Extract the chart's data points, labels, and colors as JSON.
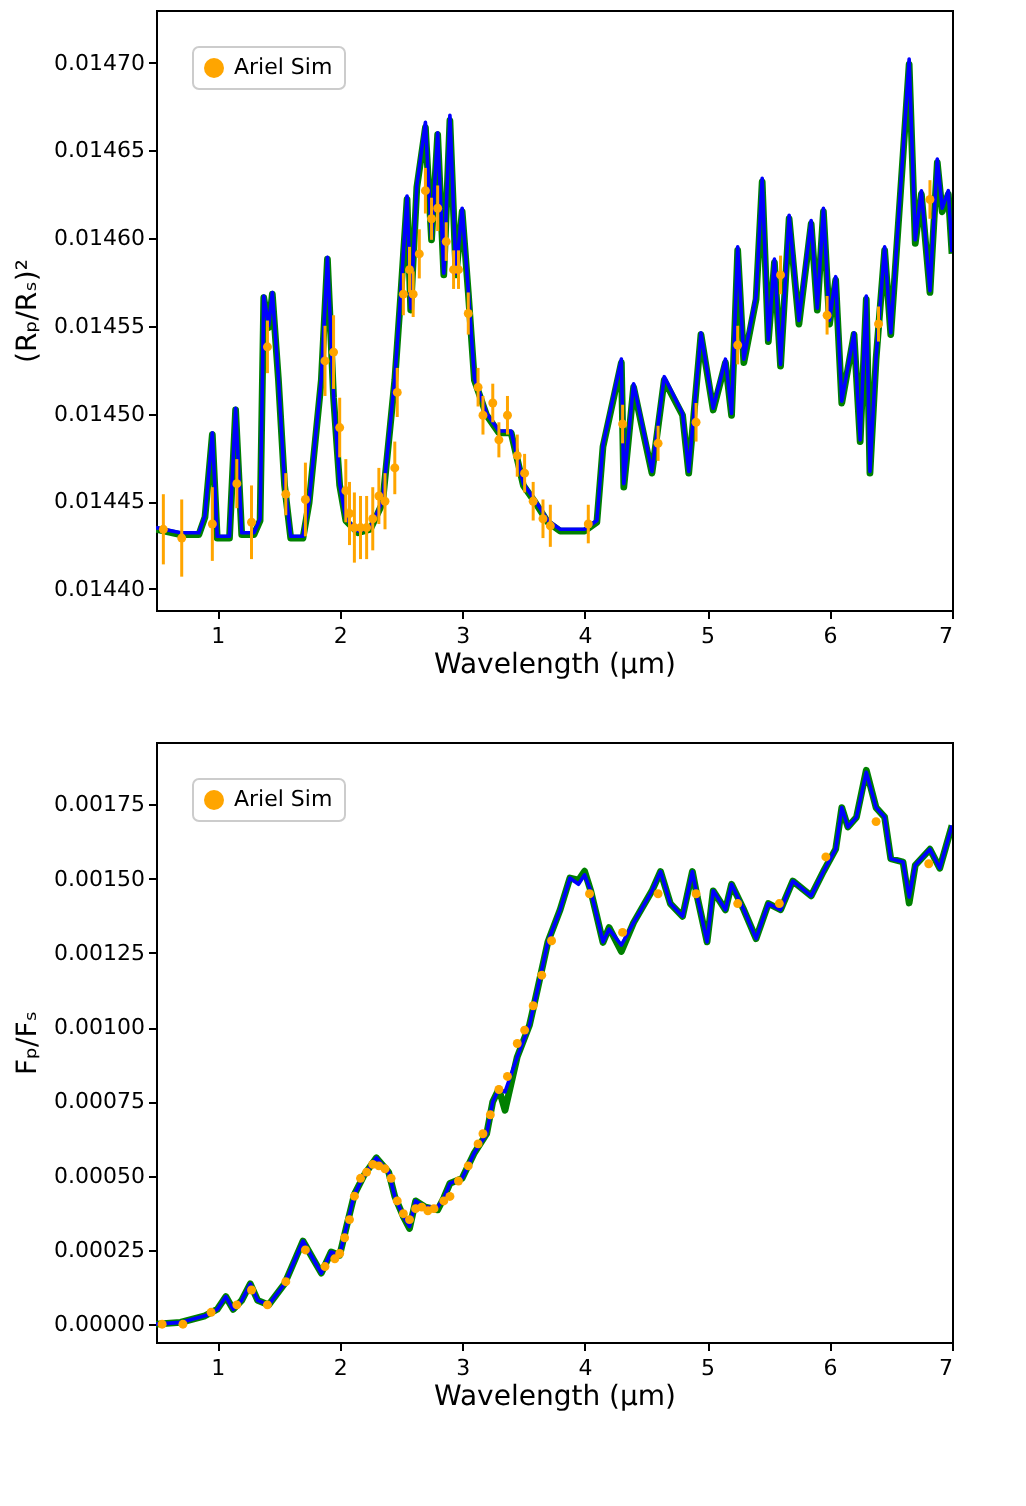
{
  "chart_data": [
    {
      "type": "line",
      "xlabel": "Wavelength (μm)",
      "ylabel": "(Rₚ/Rₛ)²",
      "xlim": [
        0.5,
        7
      ],
      "ylim": [
        0.014388,
        0.01473
      ],
      "xticks": [
        1,
        2,
        3,
        4,
        5,
        6,
        7
      ],
      "yticks": [
        {
          "value": 0.0144,
          "label": "0.01440"
        },
        {
          "value": 0.01445,
          "label": "0.01445"
        },
        {
          "value": 0.0145,
          "label": "0.01450"
        },
        {
          "value": 0.01455,
          "label": "0.01455"
        },
        {
          "value": 0.0146,
          "label": "0.01460"
        },
        {
          "value": 0.01465,
          "label": "0.01465"
        },
        {
          "value": 0.0147,
          "label": "0.01470"
        }
      ],
      "legend": "top left",
      "series": [
        {
          "color": "#008000",
          "x": [
            0.5,
            0.7,
            0.85,
            0.9,
            0.96,
            1.0,
            1.1,
            1.15,
            1.2,
            1.3,
            1.35,
            1.38,
            1.42,
            1.45,
            1.5,
            1.55,
            1.6,
            1.7,
            1.75,
            1.85,
            1.9,
            1.95,
            2.0,
            2.05,
            2.15,
            2.25,
            2.35,
            2.45,
            2.5,
            2.55,
            2.58,
            2.63,
            2.7,
            2.75,
            2.8,
            2.85,
            2.9,
            2.95,
            3.0,
            3.05,
            3.1,
            3.2,
            3.3,
            3.4,
            3.5,
            3.6,
            3.7,
            3.8,
            3.9,
            4.0,
            4.1,
            4.15,
            4.3,
            4.32,
            4.4,
            4.55,
            4.65,
            4.8,
            4.85,
            4.95,
            5.05,
            5.15,
            5.2,
            5.25,
            5.3,
            5.4,
            5.45,
            5.5,
            5.55,
            5.6,
            5.67,
            5.75,
            5.85,
            5.9,
            5.95,
            6.0,
            6.05,
            6.1,
            6.2,
            6.25,
            6.3,
            6.33,
            6.38,
            6.45,
            6.5,
            6.6,
            6.65,
            6.7,
            6.75,
            6.82,
            6.88,
            6.92,
            6.97,
            7.0
          ],
          "values": [
            0.014434,
            0.014431,
            0.014431,
            0.014441,
            0.014488,
            0.014429,
            0.014429,
            0.014502,
            0.014431,
            0.014431,
            0.014439,
            0.014566,
            0.014549,
            0.014568,
            0.014519,
            0.014459,
            0.014429,
            0.014429,
            0.014449,
            0.014519,
            0.014588,
            0.014509,
            0.014459,
            0.014439,
            0.014432,
            0.014434,
            0.014449,
            0.014519,
            0.014569,
            0.014622,
            0.014559,
            0.014629,
            0.014663,
            0.014599,
            0.014659,
            0.014579,
            0.014667,
            0.014579,
            0.014615,
            0.014569,
            0.014519,
            0.014499,
            0.014489,
            0.014489,
            0.014459,
            0.014449,
            0.014438,
            0.014433,
            0.014433,
            0.014433,
            0.014438,
            0.014481,
            0.014529,
            0.014458,
            0.014515,
            0.014466,
            0.014519,
            0.014499,
            0.014466,
            0.014545,
            0.014502,
            0.014529,
            0.014499,
            0.014593,
            0.014529,
            0.014565,
            0.014632,
            0.014541,
            0.014586,
            0.014527,
            0.014611,
            0.014551,
            0.014608,
            0.014559,
            0.014615,
            0.014551,
            0.014576,
            0.014506,
            0.014545,
            0.014484,
            0.014565,
            0.014466,
            0.014531,
            0.014593,
            0.014545,
            0.014647,
            0.014699,
            0.014597,
            0.014625,
            0.014569,
            0.014643,
            0.014615,
            0.014625,
            0.014591
          ]
        },
        {
          "color": "#0000ff",
          "x": [
            0.5,
            0.7,
            0.85,
            0.9,
            0.96,
            1.0,
            1.1,
            1.15,
            1.2,
            1.3,
            1.35,
            1.38,
            1.42,
            1.45,
            1.5,
            1.55,
            1.6,
            1.7,
            1.75,
            1.85,
            1.9,
            1.95,
            2.0,
            2.05,
            2.15,
            2.25,
            2.35,
            2.45,
            2.5,
            2.55,
            2.58,
            2.63,
            2.7,
            2.75,
            2.8,
            2.85,
            2.9,
            2.95,
            3.0,
            3.05,
            3.1,
            3.2,
            3.3,
            3.4,
            3.5,
            3.6,
            3.7,
            3.8,
            3.9,
            4.0,
            4.1,
            4.15,
            4.3,
            4.32,
            4.4,
            4.55,
            4.65,
            4.8,
            4.85,
            4.95,
            5.05,
            5.15,
            5.2,
            5.25,
            5.3,
            5.4,
            5.45,
            5.5,
            5.55,
            5.6,
            5.67,
            5.75,
            5.85,
            5.9,
            5.95,
            6.0,
            6.05,
            6.1,
            6.2,
            6.25,
            6.3,
            6.33,
            6.38,
            6.45,
            6.5,
            6.6,
            6.65,
            6.7,
            6.75,
            6.82,
            6.88,
            6.92,
            6.97,
            7.0
          ],
          "values": [
            0.014435,
            0.014432,
            0.014432,
            0.014442,
            0.014489,
            0.01443,
            0.01443,
            0.014503,
            0.014432,
            0.014432,
            0.01444,
            0.014567,
            0.01455,
            0.014569,
            0.01452,
            0.01446,
            0.01443,
            0.01443,
            0.01445,
            0.01452,
            0.014589,
            0.01451,
            0.01446,
            0.01444,
            0.014433,
            0.014435,
            0.01445,
            0.01452,
            0.01457,
            0.014624,
            0.01456,
            0.01463,
            0.014666,
            0.0146,
            0.01466,
            0.01458,
            0.01467,
            0.01458,
            0.014617,
            0.01457,
            0.01452,
            0.0145,
            0.01449,
            0.01449,
            0.01446,
            0.01445,
            0.014439,
            0.014434,
            0.014434,
            0.014434,
            0.014439,
            0.014482,
            0.014531,
            0.01446,
            0.014517,
            0.014467,
            0.014521,
            0.0145,
            0.014467,
            0.014546,
            0.014503,
            0.014531,
            0.0145,
            0.014595,
            0.014531,
            0.014567,
            0.014634,
            0.014542,
            0.014588,
            0.014528,
            0.014613,
            0.014553,
            0.01461,
            0.01456,
            0.014617,
            0.014553,
            0.014578,
            0.014507,
            0.014546,
            0.014485,
            0.014567,
            0.014467,
            0.014532,
            0.014595,
            0.014546,
            0.014649,
            0.014702,
            0.014599,
            0.014627,
            0.01457,
            0.014645,
            0.014617,
            0.014627,
            0.014592
          ]
        },
        {
          "name": "Ariel Sim",
          "type": "scatter",
          "color": "#ffa500",
          "x": [
            0.56,
            0.71,
            0.96,
            1.16,
            1.28,
            1.41,
            1.56,
            1.72,
            1.88,
            1.95,
            2.0,
            2.05,
            2.08,
            2.12,
            2.17,
            2.22,
            2.27,
            2.32,
            2.37,
            2.45,
            2.47,
            2.52,
            2.57,
            2.6,
            2.65,
            2.7,
            2.75,
            2.8,
            2.87,
            2.93,
            2.97,
            3.05,
            3.13,
            3.17,
            3.25,
            3.3,
            3.37,
            3.45,
            3.51,
            3.58,
            3.66,
            3.72,
            4.03,
            4.31,
            4.6,
            4.91,
            5.25,
            5.6,
            5.98,
            6.4,
            6.82
          ],
          "values": [
            0.014434,
            0.014429,
            0.014437,
            0.01446,
            0.014438,
            0.014538,
            0.014454,
            0.014451,
            0.01453,
            0.014535,
            0.014492,
            0.014456,
            0.014443,
            0.014435,
            0.014435,
            0.014435,
            0.01444,
            0.014453,
            0.01445,
            0.014469,
            0.014512,
            0.014568,
            0.014582,
            0.014568,
            0.014591,
            0.014627,
            0.014611,
            0.014617,
            0.014598,
            0.014582,
            0.014582,
            0.014557,
            0.014515,
            0.014499,
            0.014506,
            0.014485,
            0.014499,
            0.014476,
            0.014466,
            0.01445,
            0.01444,
            0.014436,
            0.014437,
            0.014494,
            0.014483,
            0.014495,
            0.014539,
            0.014579,
            0.014556,
            0.014551,
            0.014622
          ],
          "errors": [
            2e-05,
            2.2e-05,
            2.1e-05,
            1.4e-05,
            2.1e-05,
            1.5e-05,
            1.2e-05,
            2.1e-05,
            2e-05,
            2.1e-05,
            1.7e-05,
            1.8e-05,
            1.8e-05,
            2e-05,
            1.8e-05,
            1.8e-05,
            1.8e-05,
            1.6e-05,
            1.6e-05,
            1.5e-05,
            1.4e-05,
            1.2e-05,
            1.3e-05,
            1.3e-05,
            1.4e-05,
            1.3e-05,
            1.2e-05,
            1.3e-05,
            1.1e-05,
            1.1e-05,
            1.1e-05,
            1.2e-05,
            1.1e-05,
            1.1e-05,
            1.1e-05,
            1e-05,
            1.1e-05,
            1.2e-05,
            1.1e-05,
            1.1e-05,
            1.1e-05,
            1.2e-05,
            1.1e-05,
            1.1e-05,
            1e-05,
            1.1e-05,
            1.1e-05,
            1.1e-05,
            1.1e-05,
            1e-05,
            1.1e-05
          ]
        }
      ]
    },
    {
      "type": "line",
      "xlabel": "Wavelength (μm)",
      "ylabel": "Fₚ/Fₛ",
      "xlim": [
        0.5,
        7
      ],
      "ylim": [
        -6e-05,
        0.00196
      ],
      "xticks": [
        1,
        2,
        3,
        4,
        5,
        6,
        7
      ],
      "yticks": [
        {
          "value": 0,
          "label": "0.00000"
        },
        {
          "value": 0.00025,
          "label": "0.00025"
        },
        {
          "value": 0.0005,
          "label": "0.00050"
        },
        {
          "value": 0.00075,
          "label": "0.00075"
        },
        {
          "value": 0.001,
          "label": "0.00100"
        },
        {
          "value": 0.00125,
          "label": "0.00125"
        },
        {
          "value": 0.0015,
          "label": "0.00150"
        },
        {
          "value": 0.00175,
          "label": "0.00175"
        }
      ],
      "legend": "top left",
      "series": [
        {
          "color": "#008000",
          "x": [
            0.5,
            0.7,
            0.9,
            1.0,
            1.07,
            1.13,
            1.2,
            1.27,
            1.33,
            1.42,
            1.55,
            1.65,
            1.7,
            1.78,
            1.85,
            1.93,
            2.0,
            2.05,
            2.12,
            2.2,
            2.3,
            2.4,
            2.45,
            2.52,
            2.57,
            2.62,
            2.7,
            2.8,
            2.85,
            2.9,
            3.0,
            3.1,
            3.2,
            3.25,
            3.3,
            3.35,
            3.45,
            3.55,
            3.62,
            3.7,
            3.8,
            3.88,
            3.95,
            4.0,
            4.05,
            4.1,
            4.15,
            4.2,
            4.3,
            4.4,
            4.55,
            4.62,
            4.7,
            4.8,
            4.88,
            4.92,
            5.0,
            5.05,
            5.15,
            5.2,
            5.3,
            5.4,
            5.5,
            5.6,
            5.7,
            5.85,
            5.95,
            6.05,
            6.1,
            6.15,
            6.22,
            6.3,
            6.38,
            6.45,
            6.5,
            6.6,
            6.65,
            6.7,
            6.82,
            6.9,
            7.0
          ],
          "values": [
            0.0,
            6e-06,
            2.8e-05,
            5e-05,
            9.3e-05,
            5e-05,
            8e-05,
            0.000136,
            8e-05,
            6.5e-05,
            0.000136,
            0.000232,
            0.00028,
            0.000222,
            0.000172,
            0.000243,
            0.000232,
            0.000319,
            0.000437,
            0.000502,
            0.00056,
            0.000512,
            0.00043,
            0.000362,
            0.000322,
            0.000415,
            0.000394,
            0.000385,
            0.000425,
            0.000474,
            0.000491,
            0.000577,
            0.000641,
            0.000749,
            0.000792,
            0.00072,
            0.0009,
            0.001007,
            0.001136,
            0.001287,
            0.001395,
            0.001502,
            0.001495,
            0.001525,
            0.001459,
            0.001373,
            0.001285,
            0.001335,
            0.001255,
            0.001352,
            0.001459,
            0.001524,
            0.001416,
            0.001373,
            0.001524,
            0.001438,
            0.001287,
            0.001459,
            0.001395,
            0.001481,
            0.001395,
            0.001298,
            0.001416,
            0.001395,
            0.001492,
            0.001442,
            0.001524,
            0.001599,
            0.001739,
            0.001674,
            0.001707,
            0.001865,
            0.001739,
            0.001707,
            0.001567,
            0.001556,
            0.001418,
            0.001545,
            0.001599,
            0.001535,
            0.001679
          ]
        },
        {
          "color": "#0000ff",
          "x": [
            0.5,
            0.7,
            0.9,
            1.0,
            1.07,
            1.13,
            1.2,
            1.27,
            1.33,
            1.42,
            1.55,
            1.65,
            1.7,
            1.78,
            1.85,
            1.93,
            2.0,
            2.05,
            2.12,
            2.2,
            2.3,
            2.4,
            2.45,
            2.52,
            2.57,
            2.62,
            2.7,
            2.8,
            2.85,
            2.9,
            3.0,
            3.1,
            3.2,
            3.25,
            3.3,
            3.35,
            3.45,
            3.55,
            3.62,
            3.7,
            3.8,
            3.88,
            3.95,
            4.0,
            4.05,
            4.1,
            4.15,
            4.2,
            4.3,
            4.4,
            4.55,
            4.62,
            4.7,
            4.8,
            4.88,
            4.92,
            5.0,
            5.05,
            5.15,
            5.2,
            5.3,
            5.4,
            5.5,
            5.6,
            5.7,
            5.85,
            5.95,
            6.05,
            6.1,
            6.15,
            6.22,
            6.3,
            6.38,
            6.45,
            6.5,
            6.6,
            6.65,
            6.7,
            6.82,
            6.9,
            7.0
          ],
          "values": [
            0.0,
            6e-06,
            2.8e-05,
            5e-05,
            9.3e-05,
            5e-05,
            8e-05,
            0.000136,
            8e-05,
            6.5e-05,
            0.000136,
            0.000232,
            0.00028,
            0.000222,
            0.000172,
            0.000243,
            0.000232,
            0.000319,
            0.000437,
            0.000502,
            0.00056,
            0.000512,
            0.00043,
            0.000362,
            0.000329,
            0.000415,
            0.000394,
            0.000394,
            0.000425,
            0.000474,
            0.000491,
            0.000577,
            0.000641,
            0.000749,
            0.000792,
            0.000782,
            0.0009,
            0.001007,
            0.001136,
            0.001287,
            0.001395,
            0.001502,
            0.001481,
            0.001513,
            0.001459,
            0.001373,
            0.001287,
            0.00133,
            0.001276,
            0.001352,
            0.001459,
            0.001524,
            0.001416,
            0.001373,
            0.001524,
            0.001438,
            0.001287,
            0.001459,
            0.001395,
            0.001481,
            0.001395,
            0.001298,
            0.001416,
            0.001395,
            0.001492,
            0.001442,
            0.001524,
            0.001599,
            0.001739,
            0.001674,
            0.001707,
            0.001858,
            0.001739,
            0.001707,
            0.001567,
            0.001556,
            0.001438,
            0.001545,
            0.001599,
            0.001535,
            0.001679
          ]
        },
        {
          "name": "Ariel Sim",
          "type": "scatter",
          "color": "#ffa500",
          "x": [
            0.55,
            0.72,
            0.95,
            1.16,
            1.28,
            1.41,
            1.56,
            1.72,
            1.88,
            1.96,
            2.0,
            2.04,
            2.08,
            2.12,
            2.17,
            2.22,
            2.27,
            2.32,
            2.37,
            2.42,
            2.47,
            2.52,
            2.57,
            2.62,
            2.67,
            2.72,
            2.77,
            2.85,
            2.9,
            2.97,
            3.05,
            3.13,
            3.17,
            3.23,
            3.3,
            3.37,
            3.45,
            3.51,
            3.58,
            3.65,
            3.73,
            4.04,
            4.31,
            4.6,
            4.91,
            5.25,
            5.59,
            5.97,
            6.38,
            6.81
          ],
          "values": [
            0.0,
            0.0,
            4e-05,
            6.5e-05,
            0.000115,
            6.5e-05,
            0.000143,
            0.00025,
            0.000194,
            0.00022,
            0.000238,
            0.000291,
            0.000352,
            0.000431,
            0.000491,
            0.000512,
            0.000538,
            0.000533,
            0.000523,
            0.000491,
            0.000415,
            0.000372,
            0.000352,
            0.000389,
            0.000394,
            0.000382,
            0.000389,
            0.000415,
            0.00043,
            0.000482,
            0.000533,
            0.000607,
            0.000641,
            0.000705,
            0.00079,
            0.000834,
            0.000945,
            0.00099,
            0.001072,
            0.001175,
            0.001291,
            0.001449,
            0.001319,
            0.001449,
            0.001449,
            0.001416,
            0.001416,
            0.001573,
            0.001692,
            0.00155
          ]
        }
      ]
    }
  ]
}
